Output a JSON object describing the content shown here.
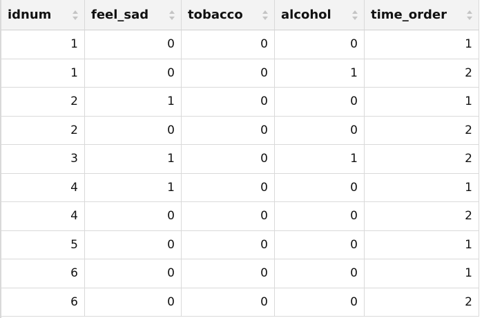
{
  "table": {
    "columns": [
      "idnum",
      "feel_sad",
      "tobacco",
      "alcohol",
      "time_order"
    ],
    "rows": [
      [
        1,
        0,
        0,
        0,
        1
      ],
      [
        1,
        0,
        0,
        1,
        2
      ],
      [
        2,
        1,
        0,
        0,
        1
      ],
      [
        2,
        0,
        0,
        0,
        2
      ],
      [
        3,
        1,
        0,
        1,
        2
      ],
      [
        4,
        1,
        0,
        0,
        1
      ],
      [
        4,
        0,
        0,
        0,
        2
      ],
      [
        5,
        0,
        0,
        0,
        1
      ],
      [
        6,
        0,
        0,
        0,
        1
      ],
      [
        6,
        0,
        0,
        0,
        2
      ]
    ]
  }
}
